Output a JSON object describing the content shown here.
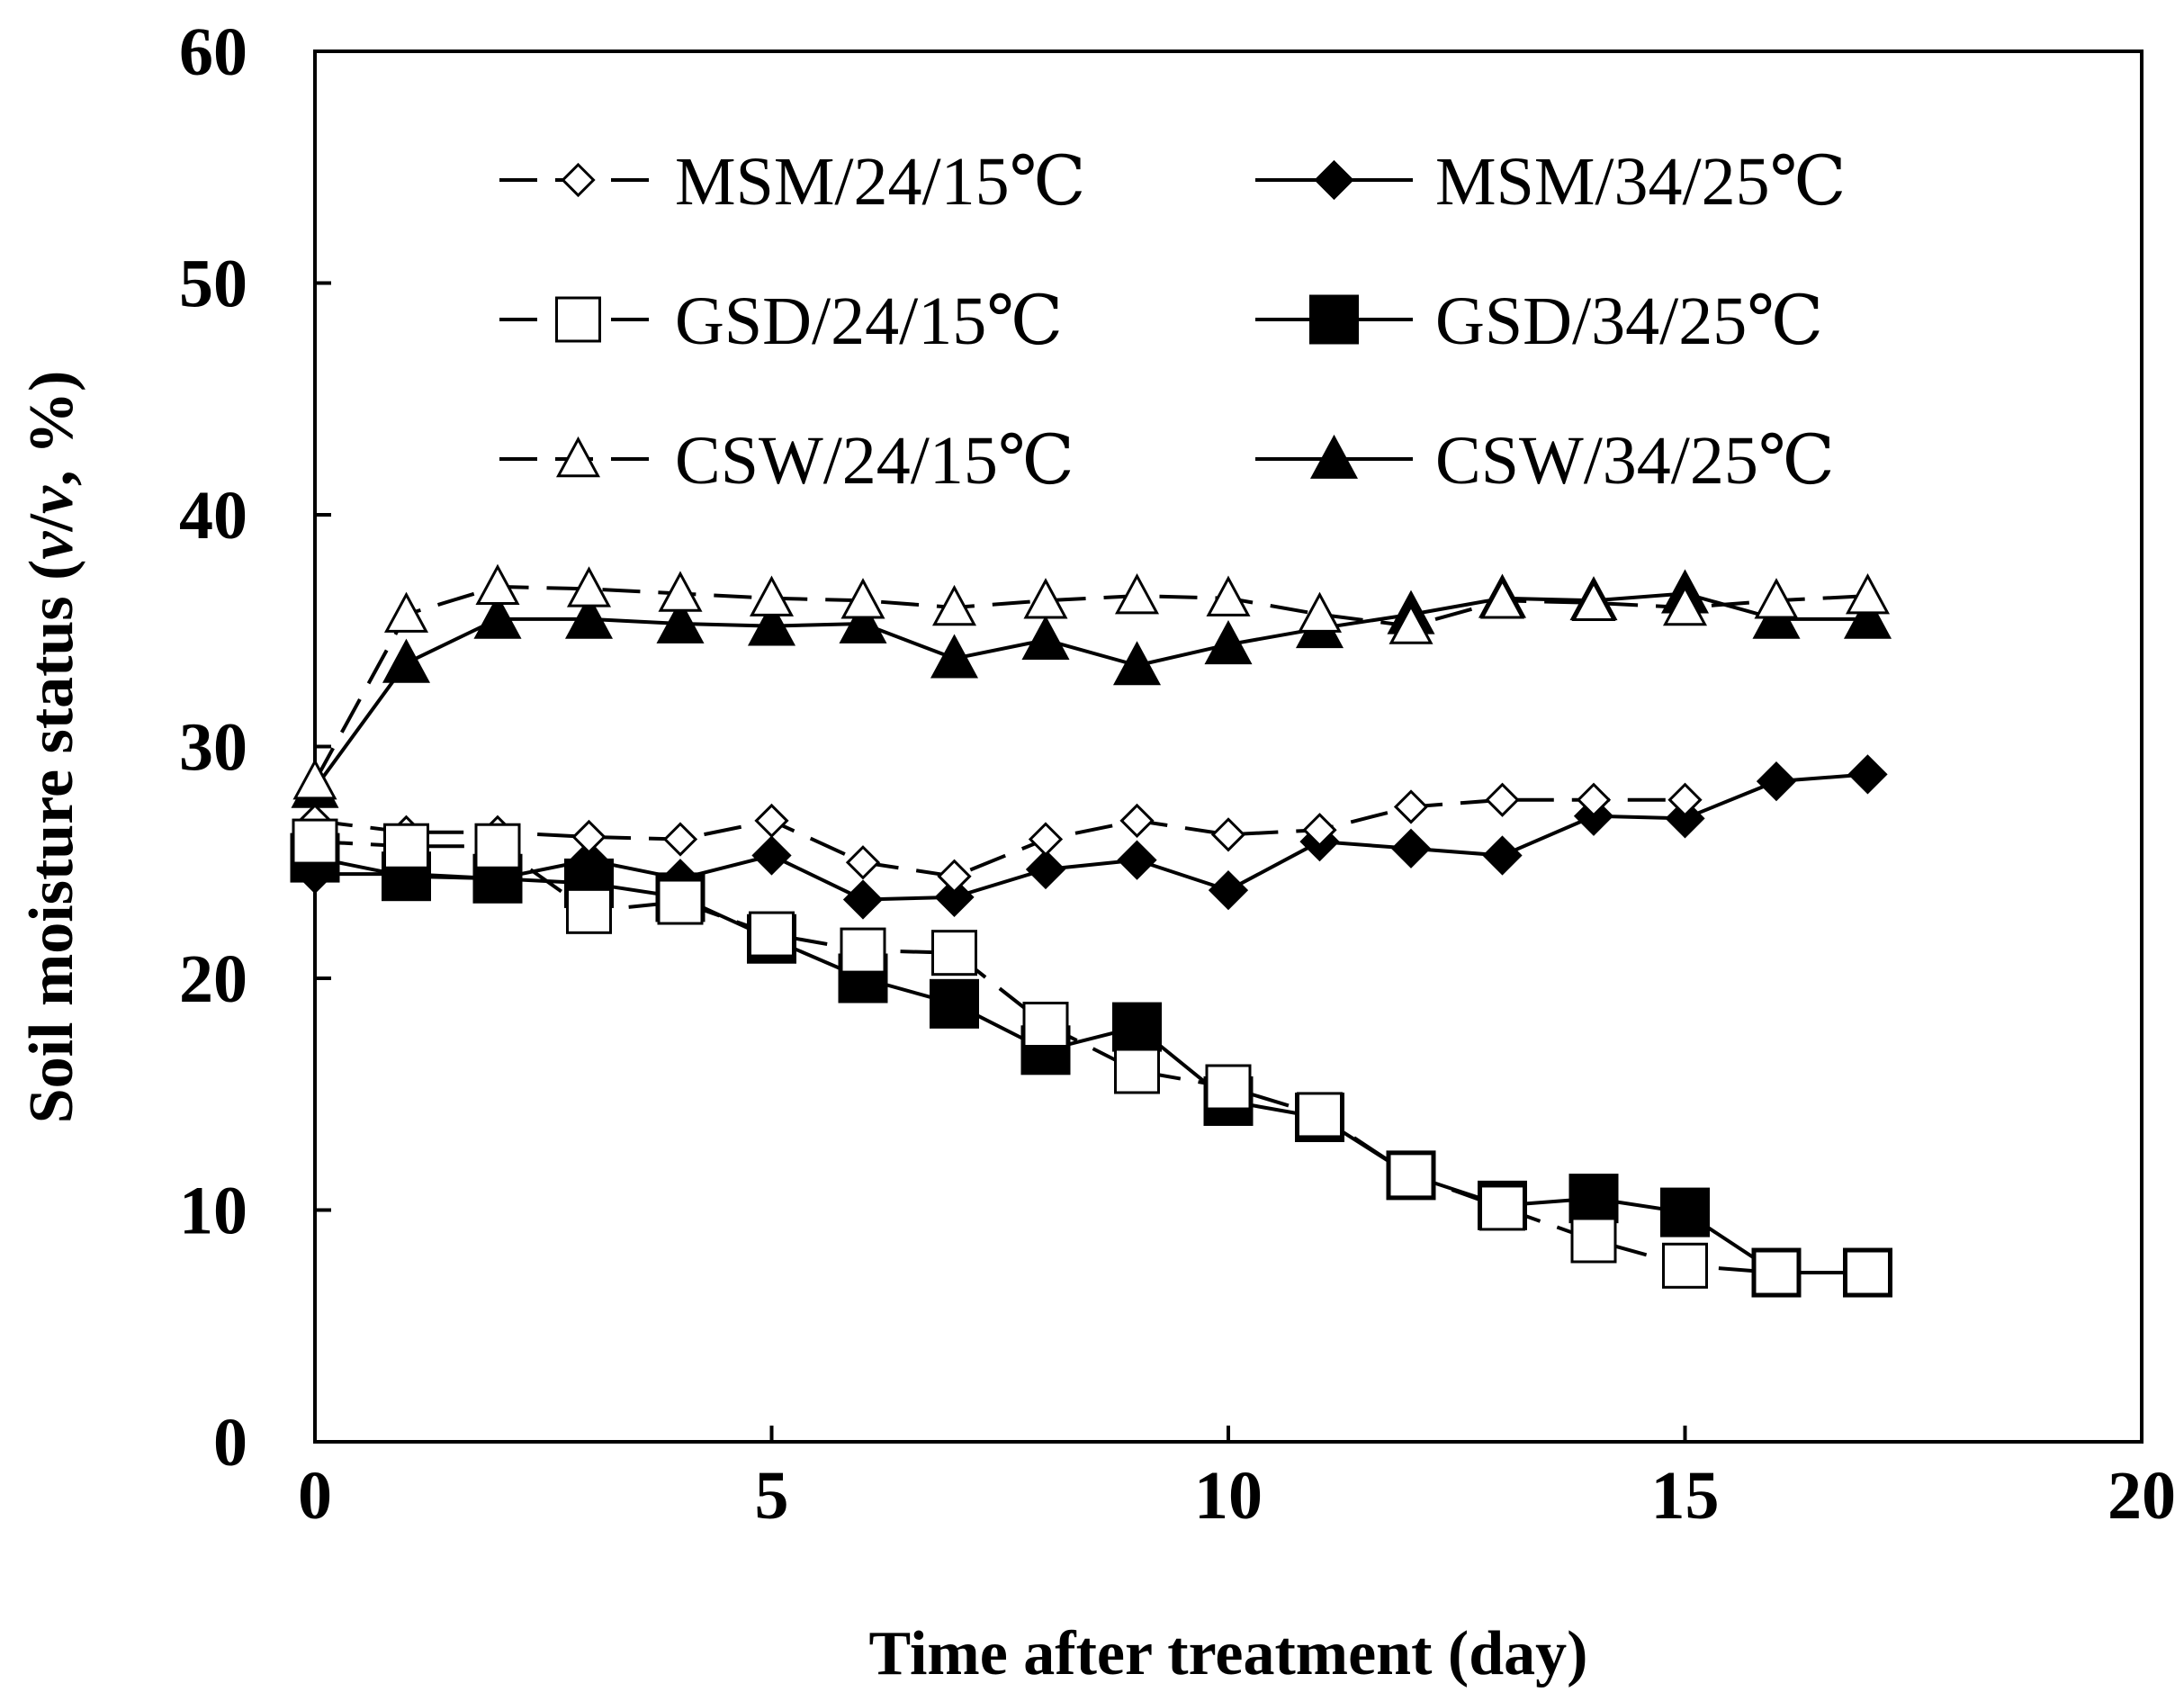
{
  "chart_data": {
    "type": "line",
    "title": "",
    "xlabel": "Time after treatment (day)",
    "ylabel_parts": [
      "Soil moisture status (",
      "v",
      "/",
      "v",
      ", %)"
    ],
    "xlim": [
      0,
      20
    ],
    "ylim": [
      0,
      60
    ],
    "xticks": [
      0,
      5,
      10,
      15,
      20
    ],
    "yticks": [
      0,
      10,
      20,
      30,
      40,
      50,
      60
    ],
    "grid": false,
    "legend_position": "top",
    "x": [
      0,
      1,
      2,
      3,
      4,
      5,
      6,
      7,
      8,
      9,
      10,
      11,
      12,
      13,
      14,
      15,
      16,
      17
    ],
    "series": [
      {
        "name": "MSM/24/15℃",
        "marker": "diamond",
        "filled": false,
        "dashed": true,
        "values": [
          26.8,
          26.3,
          26.3,
          26.1,
          26.0,
          26.8,
          25.0,
          24.4,
          26.0,
          26.8,
          26.2,
          26.4,
          27.4,
          27.7,
          27.7,
          27.7,
          null,
          null
        ]
      },
      {
        "name": "MSM/34/25℃",
        "marker": "diamond",
        "filled": true,
        "dashed": false,
        "values": [
          24.5,
          24.5,
          24.3,
          25.1,
          24.3,
          25.3,
          23.4,
          23.5,
          24.7,
          25.1,
          23.8,
          25.9,
          25.6,
          25.3,
          27.0,
          26.9,
          28.5,
          28.8
        ]
      },
      {
        "name": "GSD/24/15℃",
        "marker": "square",
        "filled": false,
        "dashed": true,
        "values": [
          25.9,
          25.7,
          25.7,
          22.9,
          23.3,
          21.9,
          21.2,
          21.1,
          18.0,
          16.0,
          15.3,
          14.1,
          11.5,
          10.1,
          8.7,
          7.6,
          7.3,
          7.3
        ]
      },
      {
        "name": "GSD/34/25℃",
        "marker": "square",
        "filled": true,
        "dashed": false,
        "values": [
          25.2,
          24.4,
          24.3,
          24.1,
          23.5,
          21.7,
          20.0,
          18.9,
          16.9,
          17.9,
          14.7,
          14.0,
          11.5,
          10.2,
          10.5,
          9.9,
          7.3,
          7.3
        ]
      },
      {
        "name": "CSW/24/15℃",
        "marker": "triangle",
        "filled": false,
        "dashed": true,
        "values": [
          28.5,
          35.7,
          36.9,
          36.8,
          36.6,
          36.4,
          36.3,
          36.0,
          36.3,
          36.5,
          36.4,
          35.7,
          35.2,
          36.3,
          36.2,
          36.0,
          36.3,
          36.5
        ]
      },
      {
        "name": "CSW/34/25℃",
        "marker": "triangle",
        "filled": true,
        "dashed": false,
        "values": [
          28.2,
          33.6,
          35.5,
          35.5,
          35.3,
          35.2,
          35.3,
          33.8,
          34.6,
          33.5,
          34.4,
          35.1,
          35.7,
          36.4,
          36.3,
          36.6,
          35.5,
          35.5
        ]
      }
    ]
  }
}
